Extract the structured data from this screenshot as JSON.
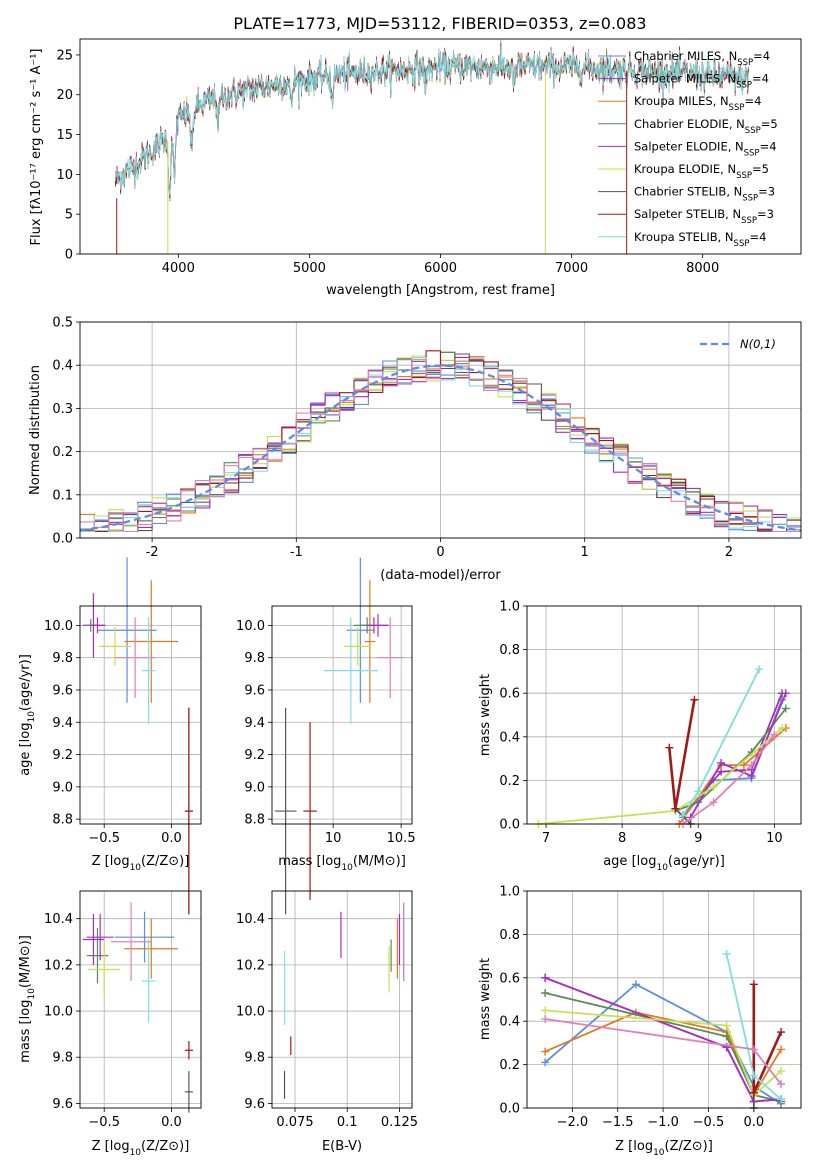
{
  "figure": {
    "title": "PLATE=1773, MJD=53112, FIBERID=0353, z=0.083"
  },
  "colors": {
    "Chabrier MILES": "#5b8ee0",
    "Salpeter MILES": "#9b30b8",
    "Kroupa MILES": "#e07a20",
    "Chabrier ELODIE": "#5a8a5a",
    "Salpeter ELODIE": "#a830c0",
    "Kroupa ELODIE": "#c8e050",
    "Chabrier STELIB": "#555555",
    "Salpeter STELIB": "#a01818",
    "Kroupa STELIB": "#80dde0",
    "extra_pink": "#e080b8",
    "normal_curve": "#5b8ee0"
  },
  "chart_data": [
    {
      "id": "spectrum",
      "type": "line",
      "title": "PLATE=1773, MJD=53112, FIBERID=0353, z=0.083",
      "xlabel": "wavelength [Angstrom, rest frame]",
      "ylabel": "Flux [fλ10⁻¹⁷ erg cm⁻² s⁻¹ A⁻¹]",
      "xlim": [
        3250,
        8750
      ],
      "ylim": [
        0,
        27
      ],
      "xticks": [
        4000,
        5000,
        6000,
        7000,
        8000
      ],
      "yticks": [
        0,
        5,
        10,
        15,
        20,
        25
      ],
      "grid": false,
      "legend_position": "right",
      "series": [
        {
          "name": "Chabrier MILES, N_SSP=4",
          "label_main": "Chabrier MILES, N",
          "label_sub": "SSP",
          "label_tail": "=4"
        },
        {
          "name": "Salpeter MILES, N_SSP=4",
          "label_main": "Salpeter MILES, N",
          "label_sub": "SSP",
          "label_tail": "=4"
        },
        {
          "name": "Kroupa MILES, N_SSP=4",
          "label_main": "Kroupa MILES, N",
          "label_sub": "SSP",
          "label_tail": "=4"
        },
        {
          "name": "Chabrier ELODIE, N_SSP=5",
          "label_main": "Chabrier ELODIE, N",
          "label_sub": "SSP",
          "label_tail": "=5"
        },
        {
          "name": "Salpeter ELODIE, N_SSP=4",
          "label_main": "Salpeter ELODIE, N",
          "label_sub": "SSP",
          "label_tail": "=4"
        },
        {
          "name": "Kroupa ELODIE, N_SSP=5",
          "label_main": "Kroupa ELODIE, N",
          "label_sub": "SSP",
          "label_tail": "=5"
        },
        {
          "name": "Chabrier STELIB, N_SSP=3",
          "label_main": "Chabrier STELIB, N",
          "label_sub": "SSP",
          "label_tail": "=3"
        },
        {
          "name": "Salpeter STELIB, N_SSP=3",
          "label_main": "Salpeter STELIB, N",
          "label_sub": "SSP",
          "label_tail": "=3"
        },
        {
          "name": "Kroupa STELIB, N_SSP=4",
          "label_main": "Kroupa STELIB, N",
          "label_sub": "SSP",
          "label_tail": "=4"
        }
      ],
      "continuum": [
        [
          3500,
          9.0
        ],
        [
          3700,
          11.5
        ],
        [
          3900,
          14.5
        ],
        [
          4000,
          17.0
        ],
        [
          4200,
          19.0
        ],
        [
          4500,
          20.5
        ],
        [
          4800,
          21.5
        ],
        [
          5200,
          22.5
        ],
        [
          5600,
          23.0
        ],
        [
          6000,
          23.5
        ],
        [
          6500,
          23.5
        ],
        [
          7000,
          23.5
        ],
        [
          7500,
          23.0
        ],
        [
          8000,
          22.5
        ],
        [
          8350,
          22.0
        ]
      ]
    },
    {
      "id": "residuals",
      "type": "histogram",
      "xlabel": "(data-model)/error",
      "ylabel": "Normed distribution",
      "xlim": [
        -2.5,
        2.5
      ],
      "ylim": [
        0,
        0.5
      ],
      "xticks": [
        -2,
        -1,
        0,
        1,
        2
      ],
      "yticks": [
        0.0,
        0.1,
        0.2,
        0.3,
        0.4,
        0.5
      ],
      "grid": true,
      "legend": "N(0,1)",
      "legend_position": "top-right",
      "bin_width": 0.1
    },
    {
      "id": "age_vs_Z",
      "type": "scatter",
      "xlabel_main": "Z [log",
      "xlabel_sub": "10",
      "xlabel_tail": "(Z/Z⊙)]",
      "ylabel_main": "age  [log",
      "ylabel_sub": "10",
      "ylabel_tail": "(age/yr)]",
      "xlim": [
        -0.68,
        0.22
      ],
      "ylim": [
        8.77,
        10.12
      ],
      "xticks": [
        -0.5,
        0.0
      ],
      "xtick_labels": [
        "−0.5",
        "0.0"
      ],
      "yticks": [
        8.8,
        9.0,
        9.2,
        9.4,
        9.6,
        9.8,
        10.0
      ],
      "grid": true,
      "points": [
        {
          "c": "Chabrier MILES",
          "x": -0.33,
          "y": 9.97,
          "xe": 0.22,
          "ye": 0.45
        },
        {
          "c": "Salpeter MILES",
          "x": -0.58,
          "y": 10.0,
          "xe": 0.08,
          "ye": 0.2
        },
        {
          "c": "Kroupa MILES",
          "x": -0.15,
          "y": 9.9,
          "xe": 0.2,
          "ye": 0.38
        },
        {
          "c": "Chabrier ELODIE",
          "x": -0.6,
          "y": 10.0,
          "xe": 0.05,
          "ye": 0.04
        },
        {
          "c": "Salpeter ELODIE",
          "x": -0.55,
          "y": 10.0,
          "xe": 0.06,
          "ye": 0.05
        },
        {
          "c": "Kroupa ELODIE",
          "x": -0.42,
          "y": 9.87,
          "xe": 0.12,
          "ye": 0.12
        },
        {
          "c": "extra_pink",
          "x": -0.27,
          "y": 9.8,
          "xe": 0.15,
          "ye": 0.25
        },
        {
          "c": "Kroupa STELIB",
          "x": -0.17,
          "y": 9.72,
          "xe": 0.05,
          "ye": 0.33
        },
        {
          "c": "Chabrier STELIB",
          "x": 0.13,
          "y": 8.85,
          "xe": 0.03,
          "ye": 0.64
        },
        {
          "c": "Salpeter STELIB",
          "x": 0.13,
          "y": 8.85,
          "xe": 0.03,
          "ye": 0.64
        }
      ]
    },
    {
      "id": "age_vs_mass",
      "type": "scatter",
      "xlabel_main": "mass [log",
      "xlabel_sub": "10",
      "xlabel_tail": "(M/M⊙)]",
      "xlim": [
        9.55,
        10.58
      ],
      "ylim": [
        8.77,
        10.12
      ],
      "xticks": [
        10.0,
        10.5
      ],
      "yticks": [
        8.8,
        9.0,
        9.2,
        9.4,
        9.6,
        9.8,
        10.0
      ],
      "grid": true,
      "points": [
        {
          "c": "Chabrier MILES",
          "x": 10.2,
          "y": 9.97,
          "xe": 0.1,
          "ye": 0.45
        },
        {
          "c": "Salpeter MILES",
          "x": 10.3,
          "y": 10.0,
          "xe": 0.1,
          "ye": 0.05
        },
        {
          "c": "Kroupa MILES",
          "x": 10.27,
          "y": 9.9,
          "xe": 0.04,
          "ye": 0.38
        },
        {
          "c": "Chabrier ELODIE",
          "x": 10.25,
          "y": 10.0,
          "xe": 0.1,
          "ye": 0.05
        },
        {
          "c": "Salpeter ELODIE",
          "x": 10.33,
          "y": 10.0,
          "xe": 0.08,
          "ye": 0.07
        },
        {
          "c": "Kroupa ELODIE",
          "x": 10.18,
          "y": 9.87,
          "xe": 0.1,
          "ye": 0.12
        },
        {
          "c": "extra_pink",
          "x": 10.42,
          "y": 9.8,
          "xe": 0.1,
          "ye": 0.25
        },
        {
          "c": "Kroupa STELIB",
          "x": 10.13,
          "y": 9.72,
          "xe": 0.2,
          "ye": 0.33
        },
        {
          "c": "Chabrier STELIB",
          "x": 9.65,
          "y": 8.85,
          "xe": 0.08,
          "ye": 0.64
        },
        {
          "c": "Salpeter STELIB",
          "x": 9.83,
          "y": 8.85,
          "xe": 0.05,
          "ye": 0.55
        }
      ]
    },
    {
      "id": "weight_vs_age",
      "type": "line",
      "xlabel_main": "age  [log",
      "xlabel_sub": "10",
      "xlabel_tail": "(age/yr)]",
      "ylabel": "mass weight",
      "xlim": [
        6.75,
        10.35
      ],
      "ylim": [
        0,
        1
      ],
      "xticks": [
        7,
        8,
        9,
        10
      ],
      "yticks": [
        0.0,
        0.2,
        0.4,
        0.6,
        0.8,
        1.0
      ],
      "grid": true,
      "series": [
        {
          "c": "Chabrier MILES",
          "x": [
            8.8,
            9.2,
            9.7,
            10.1
          ],
          "y": [
            0.03,
            0.2,
            0.21,
            0.57
          ]
        },
        {
          "c": "Salpeter MILES",
          "x": [
            8.8,
            9.3,
            9.7,
            10.1
          ],
          "y": [
            0.04,
            0.24,
            0.25,
            0.6
          ]
        },
        {
          "c": "Kroupa MILES",
          "x": [
            8.75,
            9.3,
            9.6,
            10.15
          ],
          "y": [
            0.0,
            0.27,
            0.27,
            0.44
          ]
        },
        {
          "c": "Chabrier ELODIE",
          "x": [
            8.7,
            9.0,
            9.7,
            10.15
          ],
          "y": [
            0.06,
            0.1,
            0.33,
            0.53
          ]
        },
        {
          "c": "Salpeter ELODIE",
          "x": [
            8.9,
            9.3,
            9.7,
            10.15
          ],
          "y": [
            0.03,
            0.28,
            0.22,
            0.6
          ]
        },
        {
          "c": "Kroupa ELODIE",
          "x": [
            6.9,
            8.7,
            9.2,
            10.1
          ],
          "y": [
            0.0,
            0.06,
            0.17,
            0.44
          ]
        },
        {
          "c": "Chabrier STELIB",
          "x": [
            8.7,
            8.9
          ],
          "y": [
            0.07,
            0.0
          ]
        },
        {
          "c": "Salpeter STELIB",
          "x": [
            8.62,
            8.7,
            8.95
          ],
          "y": [
            0.35,
            0.07,
            0.57
          ]
        },
        {
          "c": "Kroupa STELIB",
          "x": [
            8.8,
            9.0,
            9.8
          ],
          "y": [
            0.04,
            0.15,
            0.71
          ]
        },
        {
          "c": "extra_pink",
          "x": [
            8.8,
            9.2,
            9.7,
            10.0
          ],
          "y": [
            0.0,
            0.1,
            0.27,
            0.41
          ]
        }
      ]
    },
    {
      "id": "mass_vs_Z",
      "type": "scatter",
      "xlabel_main": "Z [log",
      "xlabel_sub": "10",
      "xlabel_tail": "(Z/Z⊙)]",
      "ylabel_main": "mass [log",
      "ylabel_sub": "10",
      "ylabel_tail": "(M/M⊙)]",
      "xlim": [
        -0.68,
        0.22
      ],
      "ylim": [
        9.58,
        10.52
      ],
      "xticks": [
        -0.5,
        0.0
      ],
      "xtick_labels": [
        "−0.5",
        "0.0"
      ],
      "yticks": [
        9.6,
        9.8,
        10.0,
        10.2,
        10.4
      ],
      "grid": true,
      "points": [
        {
          "c": "Chabrier MILES",
          "x": -0.2,
          "y": 10.32,
          "xe": 0.22,
          "ye": 0.11
        },
        {
          "c": "Salpeter MILES",
          "x": -0.58,
          "y": 10.31,
          "xe": 0.08,
          "ye": 0.11
        },
        {
          "c": "Kroupa MILES",
          "x": -0.15,
          "y": 10.27,
          "xe": 0.2,
          "ye": 0.13
        },
        {
          "c": "Chabrier ELODIE",
          "x": -0.55,
          "y": 10.24,
          "xe": 0.08,
          "ye": 0.12
        },
        {
          "c": "Salpeter ELODIE",
          "x": -0.53,
          "y": 10.32,
          "xe": 0.1,
          "ye": 0.1
        },
        {
          "c": "Kroupa ELODIE",
          "x": -0.5,
          "y": 10.18,
          "xe": 0.12,
          "ye": 0.12
        },
        {
          "c": "extra_pink",
          "x": -0.3,
          "y": 10.3,
          "xe": 0.15,
          "ye": 0.17
        },
        {
          "c": "Kroupa STELIB",
          "x": -0.17,
          "y": 10.13,
          "xe": 0.05,
          "ye": 0.18
        },
        {
          "c": "Chabrier STELIB",
          "x": 0.13,
          "y": 9.65,
          "xe": 0.03,
          "ye": 0.09
        },
        {
          "c": "Salpeter STELIB",
          "x": 0.13,
          "y": 9.83,
          "xe": 0.03,
          "ye": 0.04
        }
      ]
    },
    {
      "id": "mass_vs_ebv",
      "type": "scatter",
      "xlabel": "E(B-V)",
      "xlim": [
        0.064,
        0.131
      ],
      "ylim": [
        9.58,
        10.52
      ],
      "xticks": [
        0.075,
        0.1,
        0.125
      ],
      "yticks": [
        9.6,
        9.8,
        10.0,
        10.2,
        10.4
      ],
      "grid": true,
      "points": [
        {
          "c": "Chabrier MILES",
          "x": 0.127,
          "y": 10.3,
          "xe": 0.0,
          "ye": 0.17
        },
        {
          "c": "Salpeter MILES",
          "x": 0.125,
          "y": 10.31,
          "xe": 0.0,
          "ye": 0.11
        },
        {
          "c": "Kroupa MILES",
          "x": 0.124,
          "y": 10.27,
          "xe": 0.0,
          "ye": 0.13
        },
        {
          "c": "Chabrier ELODIE",
          "x": 0.121,
          "y": 10.24,
          "xe": 0.0,
          "ye": 0.07
        },
        {
          "c": "Salpeter ELODIE",
          "x": 0.097,
          "y": 10.33,
          "xe": 0.0,
          "ye": 0.1
        },
        {
          "c": "Kroupa ELODIE",
          "x": 0.12,
          "y": 10.18,
          "xe": 0.0,
          "ye": 0.1
        },
        {
          "c": "extra_pink",
          "x": 0.127,
          "y": 10.3,
          "xe": 0.0,
          "ye": 0.17
        },
        {
          "c": "Kroupa STELIB",
          "x": 0.07,
          "y": 10.1,
          "xe": 0.0,
          "ye": 0.16
        },
        {
          "c": "Chabrier STELIB",
          "x": 0.07,
          "y": 9.68,
          "xe": 0.0,
          "ye": 0.06
        },
        {
          "c": "Salpeter STELIB",
          "x": 0.073,
          "y": 9.85,
          "xe": 0.0,
          "ye": 0.04
        }
      ]
    },
    {
      "id": "weight_vs_Z",
      "type": "line",
      "xlabel_main": "Z [log",
      "xlabel_sub": "10",
      "xlabel_tail": "(Z/Z⊙)]",
      "ylabel": "mass weight",
      "xlim": [
        -2.5,
        0.52
      ],
      "ylim": [
        0,
        1
      ],
      "xticks": [
        -2.0,
        -1.5,
        -1.0,
        -0.5,
        0.0
      ],
      "xtick_labels": [
        "−2.0",
        "−1.5",
        "−1.0",
        "−0.5",
        "0.0"
      ],
      "yticks": [
        0.0,
        0.2,
        0.4,
        0.6,
        0.8,
        1.0
      ],
      "grid": true,
      "series": [
        {
          "c": "Chabrier MILES",
          "x": [
            -2.3,
            -1.3,
            -0.3,
            0.0,
            0.3
          ],
          "y": [
            0.21,
            0.57,
            0.35,
            0.1,
            0.02
          ]
        },
        {
          "c": "Salpeter MILES",
          "x": [
            -2.3,
            -0.3,
            0.0,
            0.3
          ],
          "y": [
            0.6,
            0.28,
            0.03,
            0.04
          ]
        },
        {
          "c": "Kroupa MILES",
          "x": [
            -2.3,
            -1.3,
            -0.3,
            0.0,
            0.3
          ],
          "y": [
            0.26,
            0.44,
            0.35,
            0.06,
            0.27
          ]
        },
        {
          "c": "Chabrier ELODIE",
          "x": [
            -2.3,
            -0.3,
            0.0,
            0.3
          ],
          "y": [
            0.53,
            0.33,
            0.06,
            0.03
          ]
        },
        {
          "c": "Salpeter ELODIE",
          "x": [
            -2.3,
            -0.3,
            0.0,
            0.3
          ],
          "y": [
            0.6,
            0.28,
            0.03,
            0.04
          ]
        },
        {
          "c": "Kroupa ELODIE",
          "x": [
            -2.3,
            -0.3,
            0.0,
            0.3
          ],
          "y": [
            0.45,
            0.38,
            0.06,
            0.17
          ]
        },
        {
          "c": "Chabrier STELIB",
          "x": [
            0.0,
            0.0
          ],
          "y": [
            0.07,
            0.0
          ]
        },
        {
          "c": "Salpeter STELIB",
          "x": [
            0.0,
            0.0,
            0.3
          ],
          "y": [
            0.57,
            0.07,
            0.35
          ]
        },
        {
          "c": "Kroupa STELIB",
          "x": [
            -0.3,
            0.0,
            0.3
          ],
          "y": [
            0.71,
            0.15,
            0.04
          ]
        },
        {
          "c": "extra_pink",
          "x": [
            -2.3,
            0.0,
            0.3
          ],
          "y": [
            0.41,
            0.27,
            0.11
          ]
        }
      ]
    }
  ]
}
